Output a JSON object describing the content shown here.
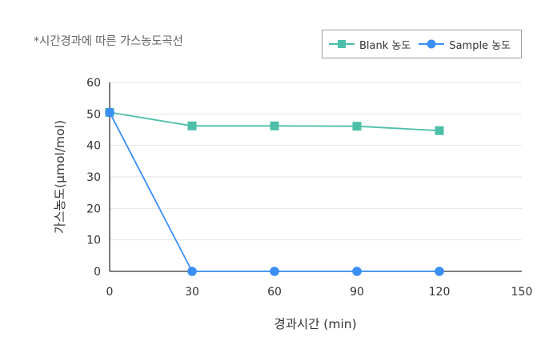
{
  "chart_data": {
    "type": "line",
    "title": "*시간경과에 따른 가스농도곡선",
    "xlabel": "경과시간 (min)",
    "ylabel": "가스농도(μmol/mol)",
    "xlim": [
      0,
      150
    ],
    "ylim": [
      0,
      60
    ],
    "x_ticks": [
      "0",
      "30",
      "60",
      "90",
      "120",
      "150"
    ],
    "y_ticks": [
      "0",
      "10",
      "20",
      "30",
      "40",
      "50",
      "60"
    ],
    "grid": "horizontal",
    "legend_position": "top-right",
    "series": [
      {
        "name": "Blank 농도",
        "color": "#4dbfa8",
        "marker": "square",
        "x": [
          0,
          30,
          60,
          90,
          120
        ],
        "y": [
          50.5,
          46.2,
          46.2,
          46.1,
          44.7
        ]
      },
      {
        "name": "Sample 농도",
        "color": "#3b8ef3",
        "marker": "circle",
        "x": [
          0,
          30,
          60,
          90,
          120
        ],
        "y": [
          50.5,
          0,
          0,
          0,
          0
        ]
      }
    ]
  }
}
